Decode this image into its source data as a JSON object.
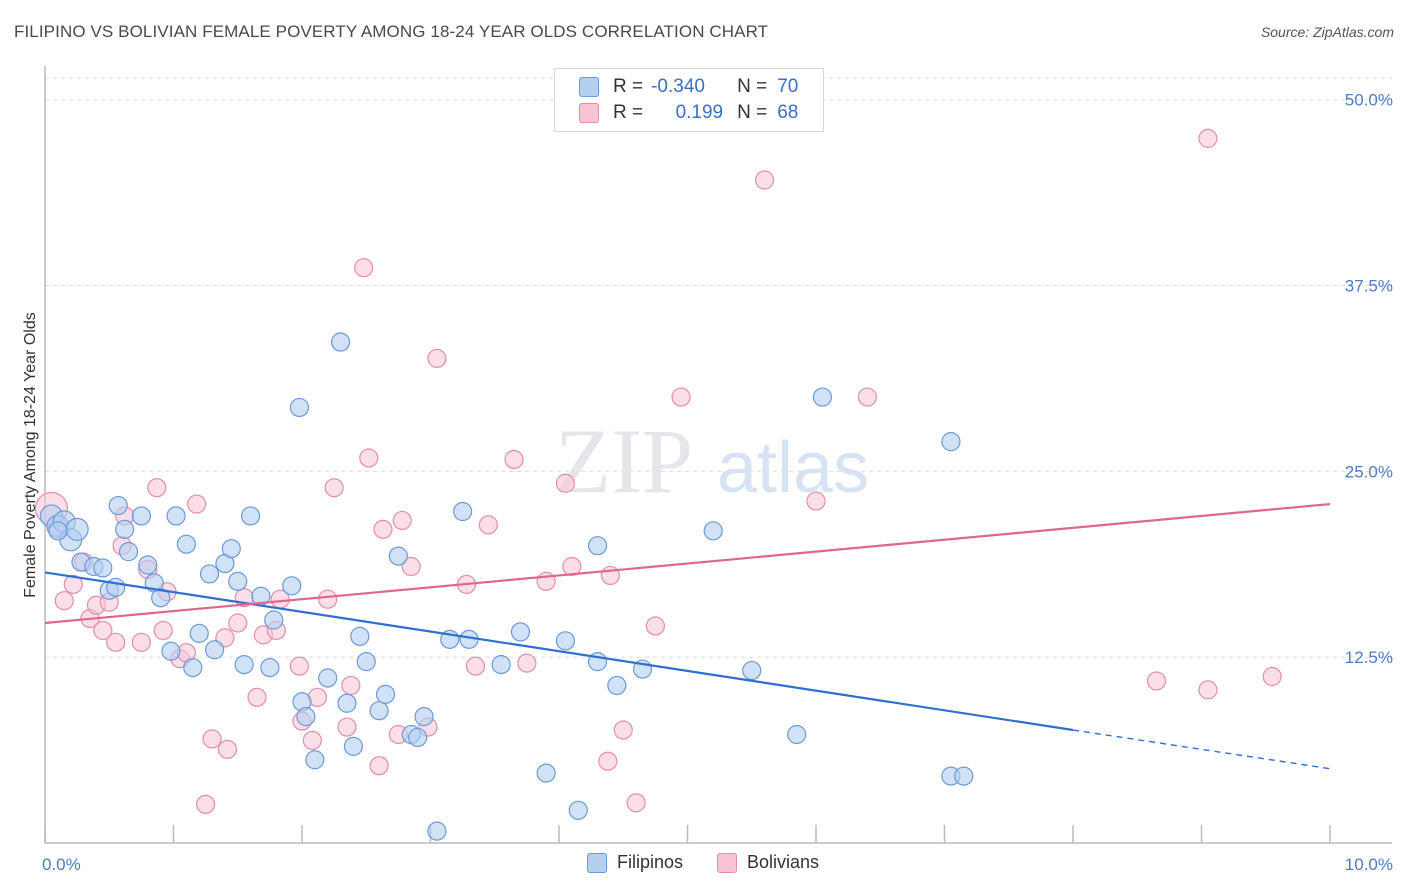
{
  "title": "FILIPINO VS BOLIVIAN FEMALE POVERTY AMONG 18-24 YEAR OLDS CORRELATION CHART",
  "source": "Source: ZipAtlas.com",
  "watermark": {
    "zip": "ZIP",
    "atlas": "atlas"
  },
  "legend": {
    "rows": [
      {
        "r_label": "R =",
        "r_value": "-0.340",
        "n_label": "N =",
        "n_value": "70"
      },
      {
        "r_label": "R =",
        "r_value": "0.199",
        "n_label": "N =",
        "n_value": "68"
      }
    ]
  },
  "colors": {
    "filipinos_fill": "#b3cff2",
    "filipinos_stroke": "#6b9ad8",
    "filipinos_line": "#2f6fd0",
    "bolivians_fill": "#f8c4d5",
    "bolivians_stroke": "#e68cab",
    "bolivians_line": "#e0668f",
    "tick_text": "#4a7cc9"
  },
  "chart_data": {
    "type": "scatter",
    "title": "FILIPINO VS BOLIVIAN FEMALE POVERTY AMONG 18-24 YEAR OLDS CORRELATION CHART",
    "xlabel": "",
    "ylabel": "Female Poverty Among 18-24 Year Olds",
    "xlim": [
      0,
      10
    ],
    "ylim": [
      0,
      52
    ],
    "x_tick_labels": [
      "0.0%",
      "10.0%"
    ],
    "y_ticks": [
      12.5,
      25.0,
      37.5,
      50.0
    ],
    "y_tick_labels": [
      "12.5%",
      "25.0%",
      "37.5%",
      "50.0%"
    ],
    "grid": true,
    "legend_position": "bottom-center",
    "series": [
      {
        "name": "Filipinos",
        "R": -0.34,
        "N": 70,
        "trend": {
          "x0": 0,
          "y0": 18.2,
          "x1": 8.0,
          "y1": 7.6,
          "dash_to_x": 10.0,
          "dash_to_y": 5.0
        },
        "points": [
          [
            0.05,
            22.0
          ],
          [
            0.1,
            21.3
          ],
          [
            0.15,
            21.6
          ],
          [
            0.2,
            20.4
          ],
          [
            0.25,
            21.1
          ],
          [
            0.28,
            18.9
          ],
          [
            0.38,
            18.6
          ],
          [
            0.45,
            18.5
          ],
          [
            0.5,
            17.0
          ],
          [
            0.55,
            17.2
          ],
          [
            0.57,
            22.7
          ],
          [
            0.62,
            21.1
          ],
          [
            0.65,
            19.6
          ],
          [
            0.75,
            22.0
          ],
          [
            0.8,
            18.7
          ],
          [
            0.85,
            17.5
          ],
          [
            0.9,
            16.5
          ],
          [
            0.98,
            12.9
          ],
          [
            1.02,
            22.0
          ],
          [
            1.1,
            20.1
          ],
          [
            1.15,
            11.8
          ],
          [
            1.2,
            14.1
          ],
          [
            1.28,
            18.1
          ],
          [
            1.32,
            13.0
          ],
          [
            1.4,
            18.8
          ],
          [
            1.45,
            19.8
          ],
          [
            1.5,
            17.6
          ],
          [
            1.55,
            12.0
          ],
          [
            1.6,
            22.0
          ],
          [
            1.68,
            16.6
          ],
          [
            1.75,
            11.8
          ],
          [
            1.78,
            15.0
          ],
          [
            1.92,
            17.3
          ],
          [
            1.98,
            29.3
          ],
          [
            2.0,
            9.5
          ],
          [
            2.03,
            8.5
          ],
          [
            2.1,
            5.6
          ],
          [
            2.2,
            11.1
          ],
          [
            2.3,
            33.7
          ],
          [
            2.35,
            9.4
          ],
          [
            2.4,
            6.5
          ],
          [
            2.45,
            13.9
          ],
          [
            2.5,
            12.2
          ],
          [
            2.6,
            8.9
          ],
          [
            2.65,
            10.0
          ],
          [
            2.75,
            19.3
          ],
          [
            2.85,
            7.3
          ],
          [
            2.9,
            7.1
          ],
          [
            2.95,
            8.5
          ],
          [
            3.05,
            0.8
          ],
          [
            3.15,
            13.7
          ],
          [
            3.25,
            22.3
          ],
          [
            3.3,
            13.7
          ],
          [
            3.55,
            12.0
          ],
          [
            3.7,
            14.2
          ],
          [
            3.9,
            4.7
          ],
          [
            4.05,
            13.6
          ],
          [
            4.15,
            2.2
          ],
          [
            4.3,
            12.2
          ],
          [
            4.45,
            10.6
          ],
          [
            4.3,
            20.0
          ],
          [
            4.65,
            11.7
          ],
          [
            5.2,
            21.0
          ],
          [
            5.5,
            11.6
          ],
          [
            5.85,
            7.3
          ],
          [
            6.05,
            30.0
          ],
          [
            7.05,
            27.0
          ],
          [
            7.05,
            4.5
          ],
          [
            7.15,
            4.5
          ],
          [
            0.1,
            21.0
          ]
        ]
      },
      {
        "name": "Bolivians",
        "R": 0.199,
        "N": 68,
        "trend": {
          "x0": 0,
          "y0": 14.8,
          "x1": 10.0,
          "y1": 22.8
        },
        "points": [
          [
            0.05,
            22.5
          ],
          [
            0.1,
            21.3
          ],
          [
            0.15,
            16.3
          ],
          [
            0.22,
            17.4
          ],
          [
            0.3,
            18.9
          ],
          [
            0.35,
            15.1
          ],
          [
            0.4,
            16.0
          ],
          [
            0.45,
            14.3
          ],
          [
            0.5,
            16.2
          ],
          [
            0.55,
            13.5
          ],
          [
            0.6,
            20.0
          ],
          [
            0.62,
            22.0
          ],
          [
            0.75,
            13.5
          ],
          [
            0.8,
            18.4
          ],
          [
            0.87,
            23.9
          ],
          [
            0.92,
            14.3
          ],
          [
            0.95,
            16.9
          ],
          [
            1.05,
            12.4
          ],
          [
            1.1,
            12.8
          ],
          [
            1.18,
            22.8
          ],
          [
            1.25,
            2.6
          ],
          [
            1.3,
            7.0
          ],
          [
            1.4,
            13.8
          ],
          [
            1.42,
            6.3
          ],
          [
            1.5,
            14.8
          ],
          [
            1.55,
            16.5
          ],
          [
            1.65,
            9.8
          ],
          [
            1.7,
            14.0
          ],
          [
            1.8,
            14.3
          ],
          [
            1.83,
            16.4
          ],
          [
            1.98,
            11.9
          ],
          [
            2.0,
            8.2
          ],
          [
            2.08,
            6.9
          ],
          [
            2.12,
            9.8
          ],
          [
            2.2,
            16.4
          ],
          [
            2.25,
            23.9
          ],
          [
            2.35,
            7.8
          ],
          [
            2.38,
            10.6
          ],
          [
            2.48,
            38.7
          ],
          [
            2.52,
            25.9
          ],
          [
            2.6,
            5.2
          ],
          [
            2.63,
            21.1
          ],
          [
            2.75,
            7.3
          ],
          [
            2.78,
            21.7
          ],
          [
            2.85,
            18.6
          ],
          [
            2.98,
            7.8
          ],
          [
            3.05,
            32.6
          ],
          [
            3.28,
            17.4
          ],
          [
            3.35,
            11.9
          ],
          [
            3.45,
            21.4
          ],
          [
            3.65,
            25.8
          ],
          [
            3.75,
            12.1
          ],
          [
            3.9,
            17.6
          ],
          [
            4.05,
            24.2
          ],
          [
            4.1,
            18.6
          ],
          [
            4.38,
            5.5
          ],
          [
            4.4,
            18.0
          ],
          [
            4.5,
            7.6
          ],
          [
            4.6,
            2.7
          ],
          [
            4.75,
            14.6
          ],
          [
            4.95,
            30.0
          ],
          [
            5.6,
            44.6
          ],
          [
            6.0,
            23.0
          ],
          [
            6.4,
            30.0
          ],
          [
            8.65,
            10.9
          ],
          [
            9.05,
            47.4
          ],
          [
            9.05,
            10.3
          ],
          [
            9.55,
            11.2
          ]
        ]
      }
    ]
  }
}
